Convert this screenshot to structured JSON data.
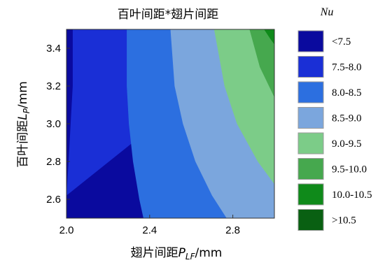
{
  "chart_data": {
    "type": "heatmap",
    "subtype": "filled-contour",
    "title": "百叶间距*翅片间距",
    "xlabel": {
      "prefix": "翅片间距",
      "symbol": "P",
      "subscript": "LF",
      "unit": "/mm"
    },
    "ylabel": {
      "prefix": "百叶间距",
      "symbol": "L",
      "subscript": "P",
      "unit": "/mm"
    },
    "xlim": [
      2.0,
      3.0
    ],
    "ylim": [
      2.5,
      3.5
    ],
    "xticks": [
      "2.0",
      "2.4",
      "2.8"
    ],
    "yticks": [
      "2.6",
      "2.8",
      "3.0",
      "3.2",
      "3.4"
    ],
    "legend": {
      "title": "Nu",
      "position": "right",
      "levels": [
        {
          "label": "<7.5",
          "color": "#0a0a9e"
        },
        {
          "label": "7.5-8.0",
          "color": "#1a2fd6"
        },
        {
          "label": "8.0-8.5",
          "color": "#2c6fe0"
        },
        {
          "label": "8.5-9.0",
          "color": "#7ba6dd"
        },
        {
          "label": "9.0-9.5",
          "color": "#7ccc88"
        },
        {
          "label": "9.5-10.0",
          "color": "#46a84e"
        },
        {
          "label": "10.0-10.5",
          "color": "#0f8a1a"
        },
        {
          "label": ">10.5",
          "color": "#096012"
        }
      ]
    },
    "contours": [
      {
        "level": 8.0,
        "points": [
          [
            2.03,
            3.5
          ],
          [
            2.03,
            3.2
          ],
          [
            2.02,
            3.0
          ],
          [
            2.01,
            2.8
          ],
          [
            2.0,
            2.62
          ]
        ]
      },
      {
        "level": 8.5,
        "points": [
          [
            2.29,
            3.5
          ],
          [
            2.29,
            3.2
          ],
          [
            2.3,
            3.0
          ],
          [
            2.32,
            2.8
          ],
          [
            2.35,
            2.6
          ],
          [
            2.37,
            2.5
          ]
        ]
      },
      {
        "level": 9.0,
        "points": [
          [
            2.5,
            3.5
          ],
          [
            2.52,
            3.2
          ],
          [
            2.56,
            3.0
          ],
          [
            2.62,
            2.8
          ],
          [
            2.7,
            2.62
          ],
          [
            2.77,
            2.5
          ]
        ]
      },
      {
        "level": 9.5,
        "points": [
          [
            2.71,
            3.5
          ],
          [
            2.76,
            3.2
          ],
          [
            2.82,
            3.0
          ],
          [
            2.92,
            2.8
          ],
          [
            3.0,
            2.68
          ]
        ]
      },
      {
        "level": 10.0,
        "points": [
          [
            2.88,
            3.5
          ],
          [
            2.93,
            3.3
          ],
          [
            3.0,
            3.14
          ]
        ]
      },
      {
        "level": 10.5,
        "points": [
          [
            2.95,
            3.5
          ],
          [
            2.98,
            3.45
          ],
          [
            3.0,
            3.42
          ]
        ]
      }
    ]
  }
}
